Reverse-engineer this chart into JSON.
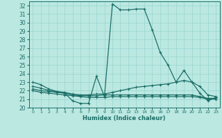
{
  "title": "",
  "xlabel": "Humidex (Indice chaleur)",
  "bg_color": "#bce8e2",
  "line_color": "#1a6e66",
  "grid_color": "#99d4ce",
  "xlim": [
    -0.5,
    23.5
  ],
  "ylim": [
    20,
    32.5
  ],
  "xticks": [
    0,
    1,
    2,
    3,
    4,
    5,
    6,
    7,
    8,
    9,
    10,
    11,
    12,
    13,
    14,
    15,
    16,
    17,
    18,
    19,
    20,
    21,
    22,
    23
  ],
  "yticks": [
    20,
    21,
    22,
    23,
    24,
    25,
    26,
    27,
    28,
    29,
    30,
    31,
    32
  ],
  "lines": [
    {
      "x": [
        0,
        1,
        2,
        3,
        4,
        5,
        6,
        7,
        8,
        9,
        10,
        11,
        12,
        13,
        14,
        15,
        16,
        17,
        18,
        19,
        20,
        21,
        22,
        23
      ],
      "y": [
        23.0,
        22.7,
        22.2,
        21.9,
        21.7,
        20.8,
        20.5,
        20.5,
        23.7,
        21.3,
        32.2,
        31.5,
        31.5,
        31.6,
        31.6,
        29.2,
        26.5,
        25.0,
        23.0,
        24.4,
        23.0,
        21.7,
        20.8,
        21.2
      ]
    },
    {
      "x": [
        0,
        1,
        2,
        3,
        4,
        5,
        6,
        7,
        8,
        9,
        10,
        11,
        12,
        13,
        14,
        15,
        16,
        17,
        18,
        19,
        20,
        21,
        22,
        23
      ],
      "y": [
        22.5,
        22.3,
        22.0,
        21.9,
        21.8,
        21.6,
        21.5,
        21.5,
        21.6,
        21.6,
        21.8,
        22.0,
        22.2,
        22.4,
        22.5,
        22.6,
        22.7,
        22.8,
        23.0,
        23.2,
        23.0,
        22.5,
        21.5,
        21.3
      ]
    },
    {
      "x": [
        0,
        1,
        2,
        3,
        4,
        5,
        6,
        7,
        8,
        9,
        10,
        11,
        12,
        13,
        14,
        15,
        16,
        17,
        18,
        19,
        20,
        21,
        22,
        23
      ],
      "y": [
        22.2,
        22.0,
        21.9,
        21.8,
        21.7,
        21.5,
        21.4,
        21.4,
        21.4,
        21.5,
        21.5,
        21.5,
        21.5,
        21.5,
        21.5,
        21.5,
        21.5,
        21.5,
        21.5,
        21.5,
        21.5,
        21.3,
        21.1,
        21.1
      ]
    },
    {
      "x": [
        0,
        1,
        2,
        3,
        4,
        5,
        6,
        7,
        8,
        9,
        10,
        11,
        12,
        13,
        14,
        15,
        16,
        17,
        18,
        19,
        20,
        21,
        22,
        23
      ],
      "y": [
        22.0,
        21.8,
        21.7,
        21.6,
        21.5,
        21.4,
        21.3,
        21.2,
        21.2,
        21.2,
        21.3,
        21.3,
        21.3,
        21.3,
        21.3,
        21.3,
        21.3,
        21.3,
        21.3,
        21.3,
        21.3,
        21.2,
        21.0,
        21.0
      ]
    }
  ]
}
